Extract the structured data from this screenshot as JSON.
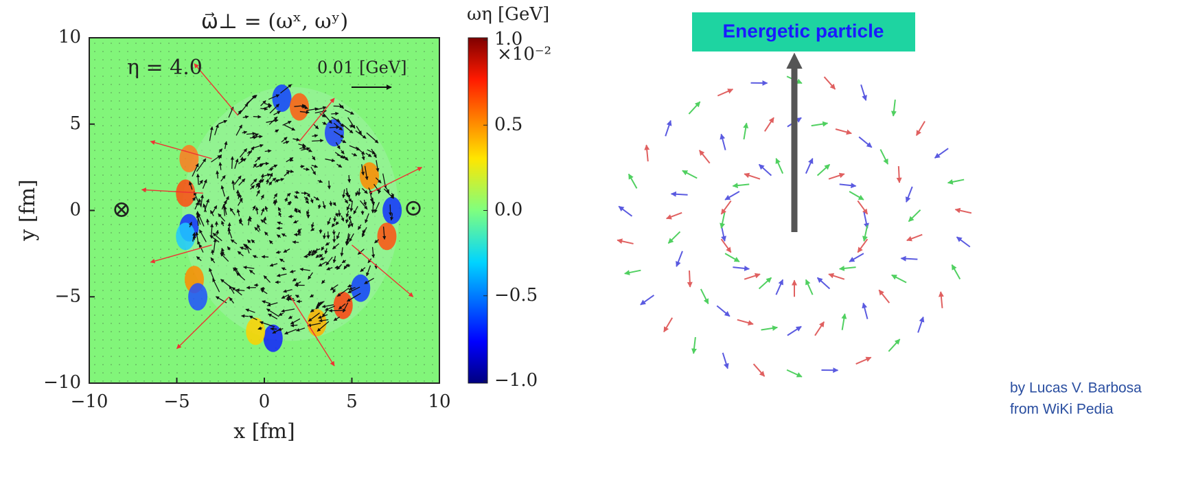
{
  "chart_data": {
    "type": "quiver",
    "title": "ω⃗⊥ = (ωˣ, ωʸ)",
    "xlabel": "x [fm]",
    "ylabel": "y [fm]",
    "xlim": [
      -10,
      10
    ],
    "ylim": [
      -10,
      10
    ],
    "xticks": [
      {
        "value": -10,
        "label": "−10"
      },
      {
        "value": -5,
        "label": "−5"
      },
      0,
      5,
      10
    ],
    "yticks": [
      {
        "value": -10,
        "label": "−10"
      },
      {
        "value": -5,
        "label": "−5"
      },
      0,
      5,
      10
    ],
    "colorbar": {
      "label": "ωη [GeV]",
      "scale_label": "×10⁻²",
      "lim": [
        -1,
        1
      ],
      "ticks": [
        {
          "value": 1,
          "label": "1.0"
        },
        {
          "value": 0.5,
          "label": "0.5"
        },
        {
          "value": 0,
          "label": "0.0"
        },
        {
          "value": -0.5,
          "label": "−0.5"
        },
        {
          "value": -1,
          "label": "−1.0"
        }
      ]
    },
    "annotations": [
      "η = 4.0",
      "0.01 [GeV]",
      "⊗",
      "⊙"
    ]
  },
  "diagram": {
    "label": "Energetic particle",
    "credit": [
      "by Lucas V. Barbosa",
      "from WiKi Pedia"
    ]
  }
}
